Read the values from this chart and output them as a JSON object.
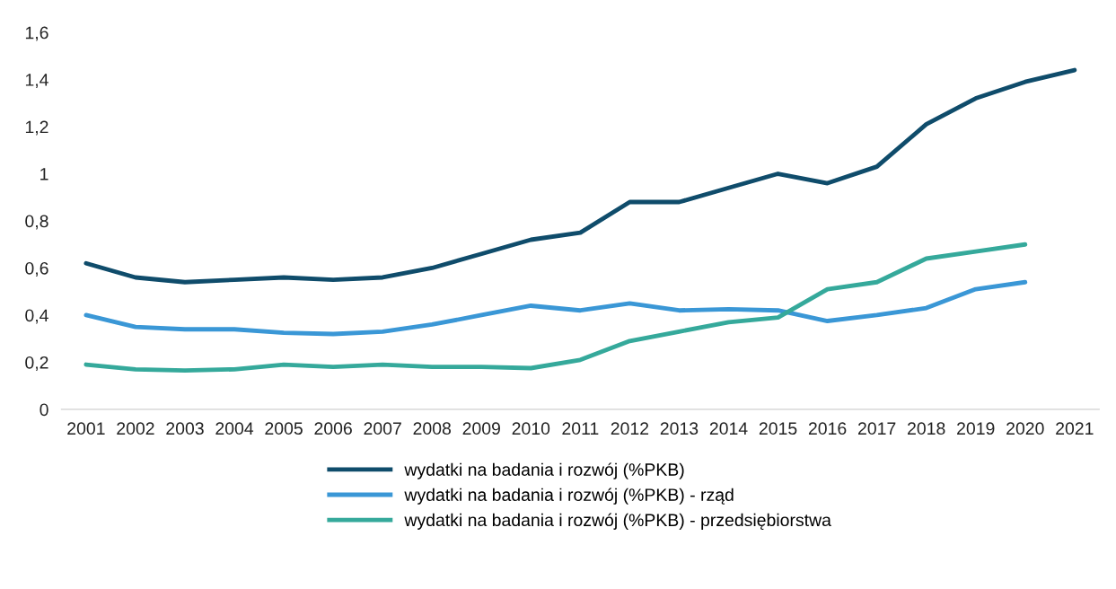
{
  "chart_data": {
    "type": "line",
    "categories": [
      "2001",
      "2002",
      "2003",
      "2004",
      "2005",
      "2006",
      "2007",
      "2008",
      "2009",
      "2010",
      "2011",
      "2012",
      "2013",
      "2014",
      "2015",
      "2016",
      "2017",
      "2018",
      "2019",
      "2020",
      "2021"
    ],
    "series": [
      {
        "name": "wydatki na badania i rozwój (%PKB)",
        "color": "#0f4c6b",
        "values": [
          0.62,
          0.56,
          0.54,
          0.55,
          0.56,
          0.55,
          0.56,
          0.6,
          0.66,
          0.72,
          0.75,
          0.88,
          0.88,
          0.94,
          1.0,
          0.96,
          1.03,
          1.21,
          1.32,
          1.39,
          1.44
        ]
      },
      {
        "name": "wydatki na badania i rozwój (%PKB) - rząd",
        "color": "#3a97d6",
        "values": [
          0.4,
          0.35,
          0.34,
          0.34,
          0.325,
          0.32,
          0.33,
          0.36,
          0.4,
          0.44,
          0.42,
          0.45,
          0.42,
          0.425,
          0.42,
          0.375,
          0.4,
          0.43,
          0.51,
          0.54,
          null
        ]
      },
      {
        "name": "wydatki na badania i rozwój (%PKB) - przedsiębiorstwa",
        "color": "#35a99b",
        "values": [
          0.19,
          0.17,
          0.165,
          0.17,
          0.19,
          0.18,
          0.19,
          0.18,
          0.18,
          0.175,
          0.21,
          0.29,
          0.33,
          0.37,
          0.39,
          0.51,
          0.54,
          0.64,
          0.67,
          0.7,
          null
        ]
      }
    ],
    "ylim": [
      0,
      1.6
    ],
    "yticks": [
      {
        "value": 0,
        "label": "0"
      },
      {
        "value": 0.2,
        "label": "0,2"
      },
      {
        "value": 0.4,
        "label": "0,4"
      },
      {
        "value": 0.6,
        "label": "0,6"
      },
      {
        "value": 0.8,
        "label": "0,8"
      },
      {
        "value": 1,
        "label": "1"
      },
      {
        "value": 1.2,
        "label": "1,2"
      },
      {
        "value": 1.4,
        "label": "1,4"
      },
      {
        "value": 1.6,
        "label": "1,6"
      }
    ],
    "grid": false,
    "legend": "bottom",
    "marker": "none",
    "line_style": "solid"
  }
}
